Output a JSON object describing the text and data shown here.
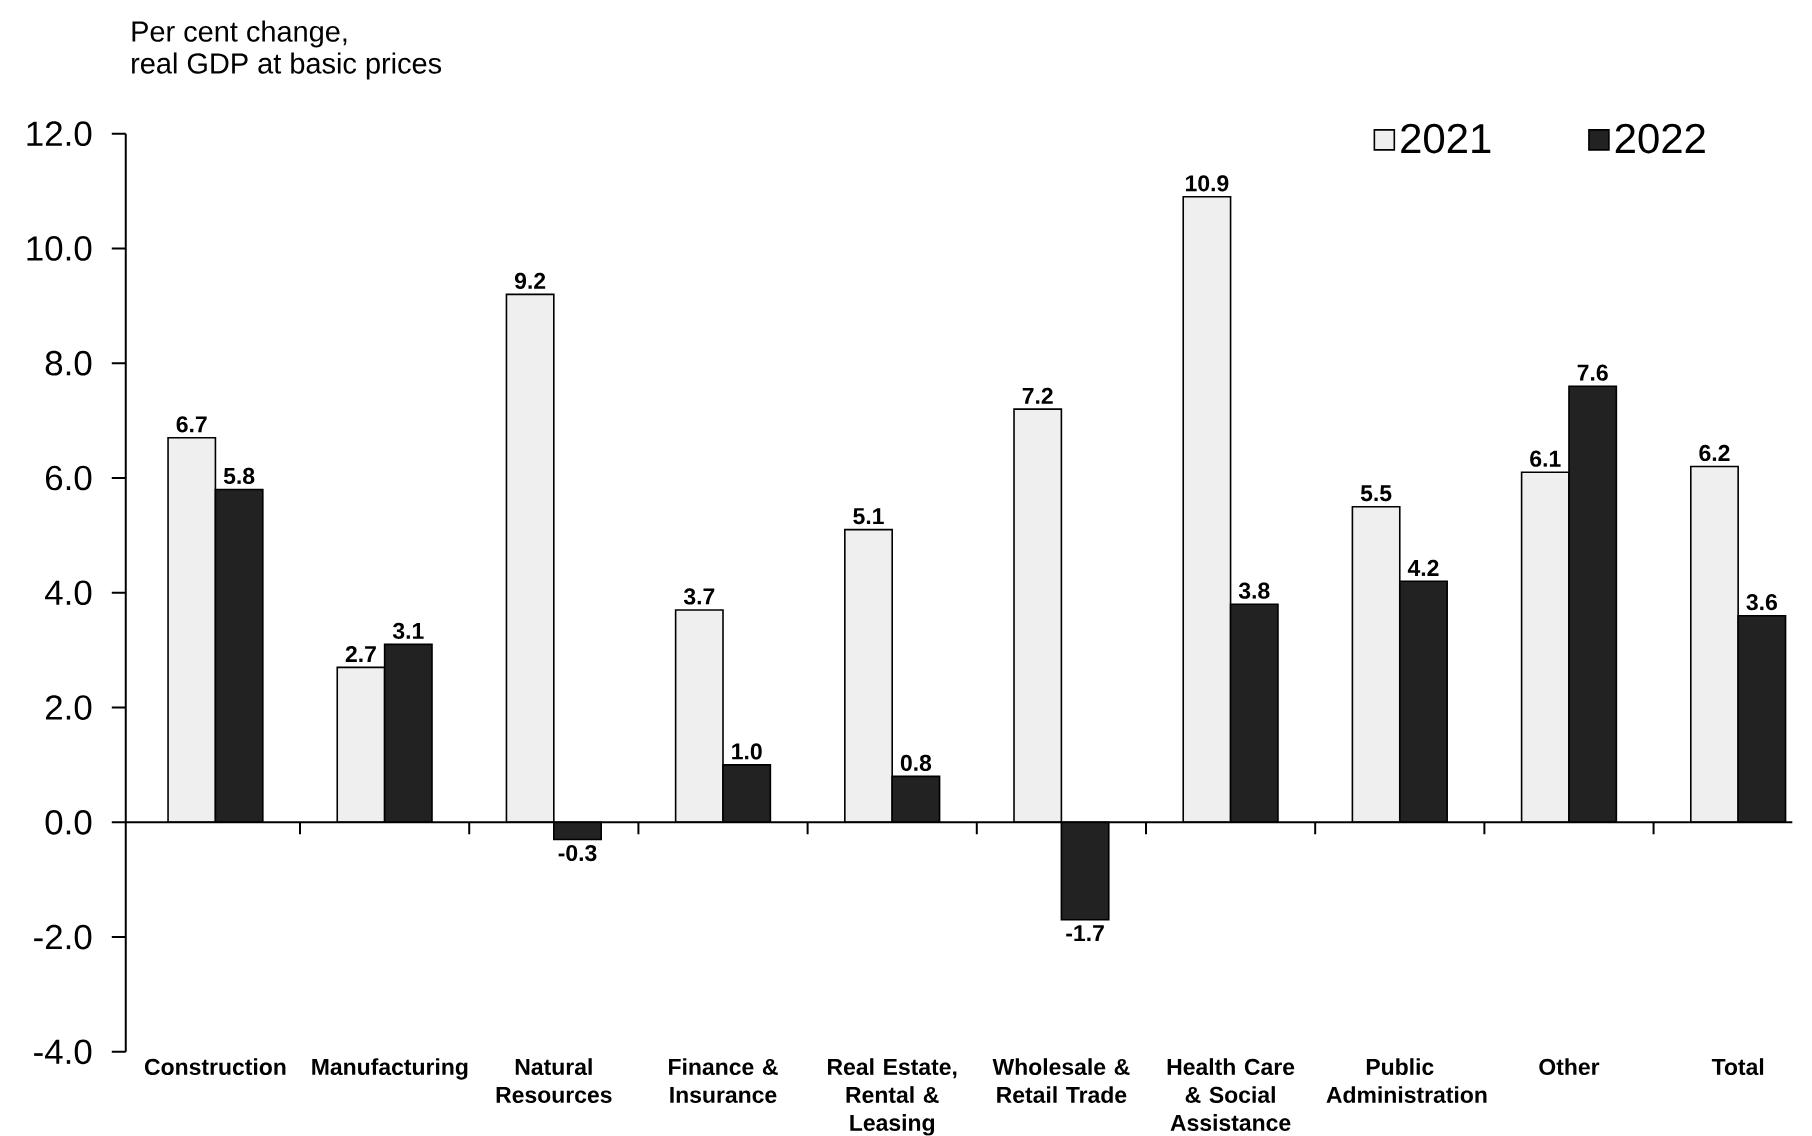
{
  "chart_data": {
    "type": "bar",
    "ylabel": "Per cent change, real GDP at basic prices",
    "categories": [
      "Construction",
      "Manufacturing",
      "Natural Resources",
      "Finance & Insurance",
      "Real Estate, Rental & Leasing",
      "Wholesale & Retail Trade",
      "Health Care & Social Assistance",
      "Public Administration",
      "Other",
      "Total"
    ],
    "series": [
      {
        "name": "2021",
        "color": "#efefef",
        "values": [
          6.7,
          2.7,
          9.2,
          3.7,
          5.1,
          7.2,
          10.9,
          5.5,
          6.1,
          6.2
        ],
        "value_labels": [
          "6.7",
          "2.7",
          "9.2",
          "3.7",
          "5.1",
          "7.2",
          "10.9",
          "5.5",
          "6.1",
          "6.2"
        ]
      },
      {
        "name": "2022",
        "color": "#222222",
        "values": [
          5.8,
          3.1,
          -0.3,
          1.0,
          0.8,
          -1.7,
          3.8,
          4.2,
          7.6,
          3.6
        ],
        "value_labels": [
          "5.8",
          "3.1",
          "-0.3",
          "1.0",
          "0.8",
          "-1.7",
          "3.8",
          "4.2",
          "7.6",
          "3.6"
        ]
      }
    ],
    "ylim": [
      -4,
      12
    ],
    "yticks": [
      {
        "value": -4,
        "label": "-4.0"
      },
      {
        "value": -2,
        "label": "-2.0"
      },
      {
        "value": 0,
        "label": "0.0"
      },
      {
        "value": 2,
        "label": "2.0"
      },
      {
        "value": 4,
        "label": "4.0"
      },
      {
        "value": 6,
        "label": "6.0"
      },
      {
        "value": 8,
        "label": "8.0"
      },
      {
        "value": 10,
        "label": "10.0"
      },
      {
        "value": 12,
        "label": "12.0"
      }
    ],
    "legend": "top right"
  }
}
